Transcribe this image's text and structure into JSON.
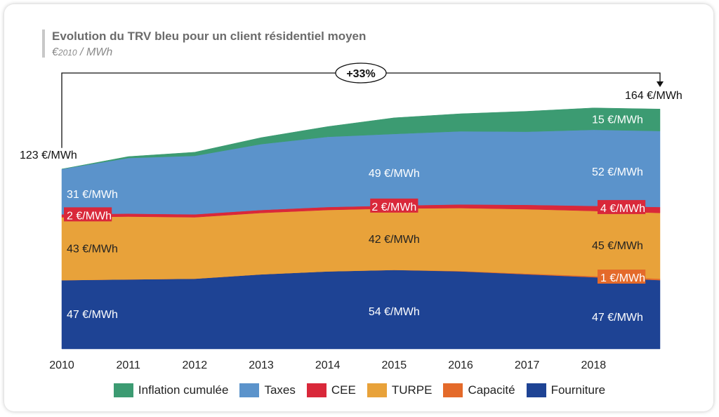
{
  "chart_data": {
    "type": "area",
    "stacked": true,
    "title": "Evolution du TRV bleu pour un client résidentiel moyen",
    "subtitle_prefix": "€",
    "subtitle_year": "2010",
    "subtitle_suffix": " / MWh",
    "x": [
      2010,
      2011,
      2012,
      2013,
      2014,
      2015,
      2016,
      2017,
      2018,
      2019
    ],
    "xticks": [
      "2010",
      "2011",
      "2012",
      "2013",
      "2014",
      "2015",
      "2016",
      "2017",
      "2018"
    ],
    "ylim": [
      0,
      180
    ],
    "series": [
      {
        "name": "Fourniture",
        "color": "#1e4394",
        "values": [
          47,
          47.5,
          48,
          51,
          53,
          54,
          53,
          51,
          49,
          47
        ]
      },
      {
        "name": "Capacité",
        "color": "#e46a2a",
        "values": [
          0,
          0,
          0,
          0,
          0,
          0,
          0.3,
          0.5,
          0.8,
          1
        ]
      },
      {
        "name": "TURPE",
        "color": "#e8a23a",
        "values": [
          43,
          43,
          42,
          42,
          42,
          42,
          43,
          44,
          44.5,
          45
        ]
      },
      {
        "name": "CEE",
        "color": "#d9283a",
        "values": [
          2,
          2,
          2,
          2,
          2,
          2,
          2.5,
          3,
          3.5,
          4
        ]
      },
      {
        "name": "Taxes",
        "color": "#5b93cb",
        "values": [
          31,
          38,
          40,
          45,
          48,
          49,
          50,
          50,
          52,
          52
        ]
      },
      {
        "name": "Inflation cumulée",
        "color": "#3c9b72",
        "values": [
          0,
          1,
          2.5,
          4.5,
          7,
          11,
          12,
          14,
          15,
          15
        ]
      }
    ],
    "legend_order": [
      "Inflation cumulée",
      "Taxes",
      "CEE",
      "TURPE",
      "Capacité",
      "Fourniture"
    ],
    "annotations": {
      "start_total": "123 €/MWh",
      "end_total": "164 €/MWh",
      "change": "+33%",
      "left_labels": [
        "47 €/MWh",
        "43 €/MWh",
        "2 €/MWh",
        "31 €/MWh"
      ],
      "middle_labels": [
        "54 €/MWh",
        "42 €/MWh",
        "2 €/MWh",
        "49 €/MWh"
      ],
      "right_labels": [
        "47 €/MWh",
        "1 €/MWh",
        "45 €/MWh",
        "4 €/MWh",
        "52 €/MWh",
        "15 €/MWh"
      ]
    }
  }
}
